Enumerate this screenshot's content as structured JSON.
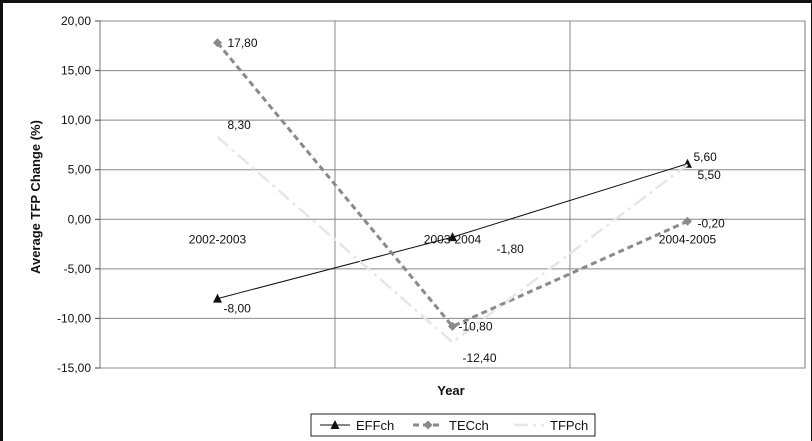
{
  "chart_data": {
    "type": "line",
    "categories": [
      "2002-2003",
      "2003-2004",
      "2004-2005"
    ],
    "series": [
      {
        "name": "EFFch",
        "values": [
          -8.0,
          -1.8,
          5.6
        ],
        "labels": [
          "-8,00",
          "-1,80",
          "5,60"
        ],
        "color": "#111111",
        "marker": "triangle",
        "line": "solid"
      },
      {
        "name": "TECch",
        "values": [
          17.8,
          -10.8,
          -0.2
        ],
        "labels": [
          "17,80",
          "-10,80",
          "-0,20"
        ],
        "color": "#8a8a8a",
        "marker": "diamond",
        "line": "dashed"
      },
      {
        "name": "TFPch",
        "values": [
          8.3,
          -12.4,
          5.5
        ],
        "labels": [
          "8,30",
          "-12,40",
          "5,50"
        ],
        "color": "#e6e6e6",
        "marker": "none",
        "line": "dashdot"
      }
    ],
    "ylabel": "Average TFP Change (%)",
    "xlabel": "Year",
    "ylim": [
      -15,
      20
    ],
    "yticks": [
      "-15,00",
      "-10,00",
      "-5,00",
      "0,00",
      "5,00",
      "10,00",
      "15,00",
      "20,00"
    ],
    "ytick_values": [
      -15,
      -10,
      -5,
      0,
      5,
      10,
      15,
      20
    ],
    "grid": "horizontal and vertical",
    "legend_position": "bottom"
  }
}
